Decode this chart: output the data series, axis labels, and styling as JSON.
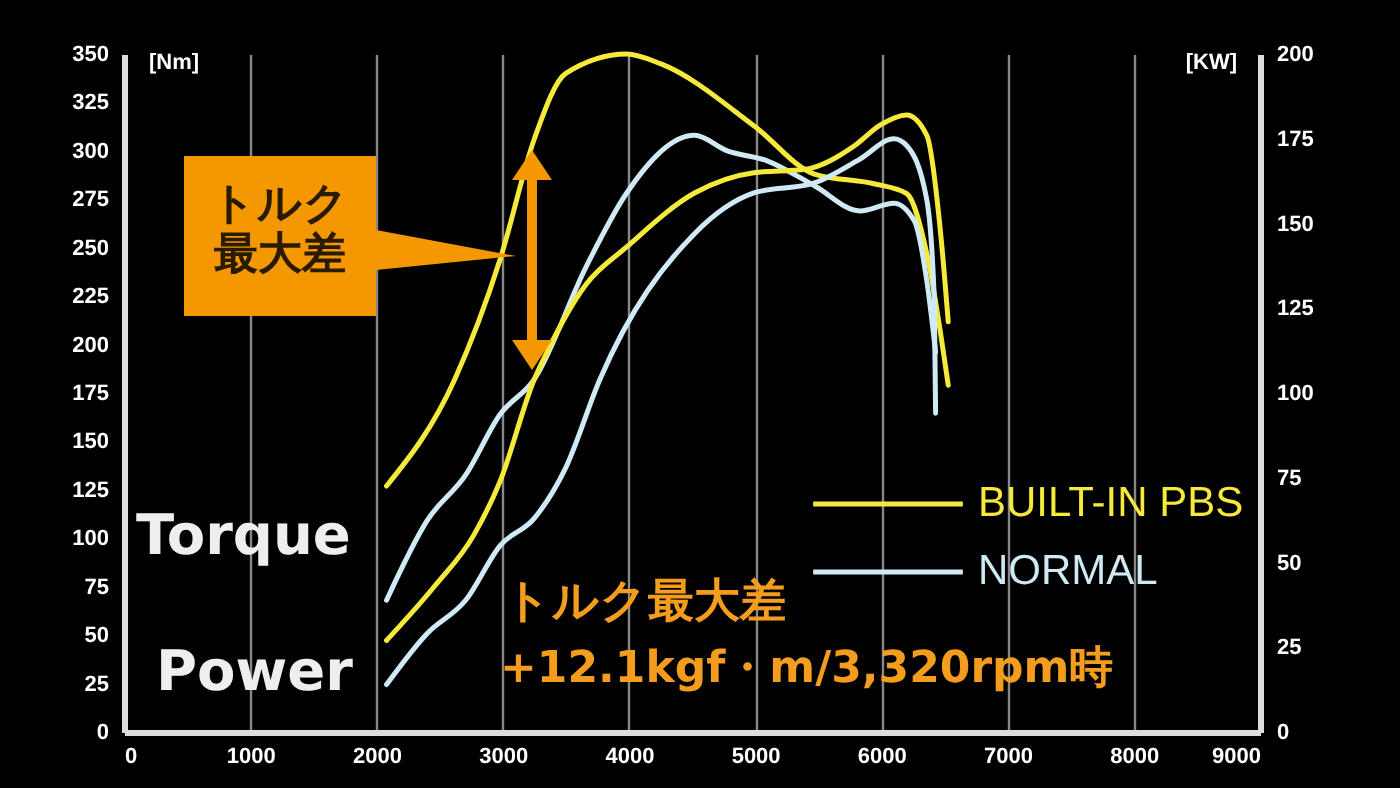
{
  "chart_data": {
    "type": "line",
    "ylabel": "[Nm]",
    "y2label": "[KW]",
    "xlim": [
      0,
      9000
    ],
    "xticks": [
      0,
      1000,
      2000,
      3000,
      4000,
      5000,
      6000,
      7000,
      8000,
      9000
    ],
    "ylim": [
      0,
      350
    ],
    "yticks": [
      0,
      25,
      50,
      75,
      100,
      125,
      150,
      175,
      200,
      225,
      250,
      275,
      300,
      325,
      350
    ],
    "y2lim": [
      0,
      200
    ],
    "y2ticks": [
      0,
      25,
      50,
      75,
      100,
      125,
      150,
      175,
      200
    ],
    "grid": "x",
    "legend": "bottom right",
    "annotations": [
      "トルク最大差",
      "Torque",
      "Power",
      "トルク最大差",
      "+12.1kgf・m/3,320rpm時"
    ],
    "series": [
      {
        "name": "BUILT-IN PBS",
        "color": "#f5ea3c",
        "x": [
          2080,
          2620,
          2980,
          3250,
          3500,
          3980,
          4250,
          4990,
          5470,
          5940,
          6200,
          6360,
          6530
        ],
        "values": [
          127,
          182,
          244,
          306,
          340,
          350,
          345,
          313,
          288,
          283,
          278,
          247,
          179
        ]
      },
      {
        "color": "#f5ea3c",
        "axis": "y2",
        "x": [
          2080,
          2460,
          2770,
          2980,
          3250,
          3350,
          3660,
          3980,
          4520,
          4990,
          5400,
          5790,
          5990,
          6200,
          6360,
          6470,
          6530
        ],
        "values": [
          27,
          43,
          58,
          74,
          104,
          112,
          132,
          143,
          159,
          165,
          166,
          173,
          179,
          182,
          176,
          147,
          121
        ]
      },
      {
        "name": "NORMAL",
        "color": "#cfeaf5",
        "x": [
          2080,
          2400,
          2710,
          2980,
          3250,
          3660,
          3980,
          4520,
          4780,
          5090,
          5470,
          5830,
          6100,
          6260,
          6360,
          6430
        ],
        "values": [
          68,
          109,
          133,
          164,
          182,
          240,
          278,
          308,
          300,
          295,
          282,
          269,
          273,
          264,
          233,
          196
        ]
      },
      {
        "color": "#cfeaf5",
        "axis": "y2",
        "x": [
          2080,
          2400,
          2710,
          2980,
          3250,
          3500,
          3770,
          4520,
          4990,
          5470,
          5830,
          6100,
          6200,
          6360,
          6420,
          6430
        ],
        "values": [
          14,
          29,
          39,
          55,
          63,
          78,
          104,
          147,
          159,
          162,
          169,
          175,
          173,
          157,
          127,
          94
        ]
      }
    ]
  }
}
